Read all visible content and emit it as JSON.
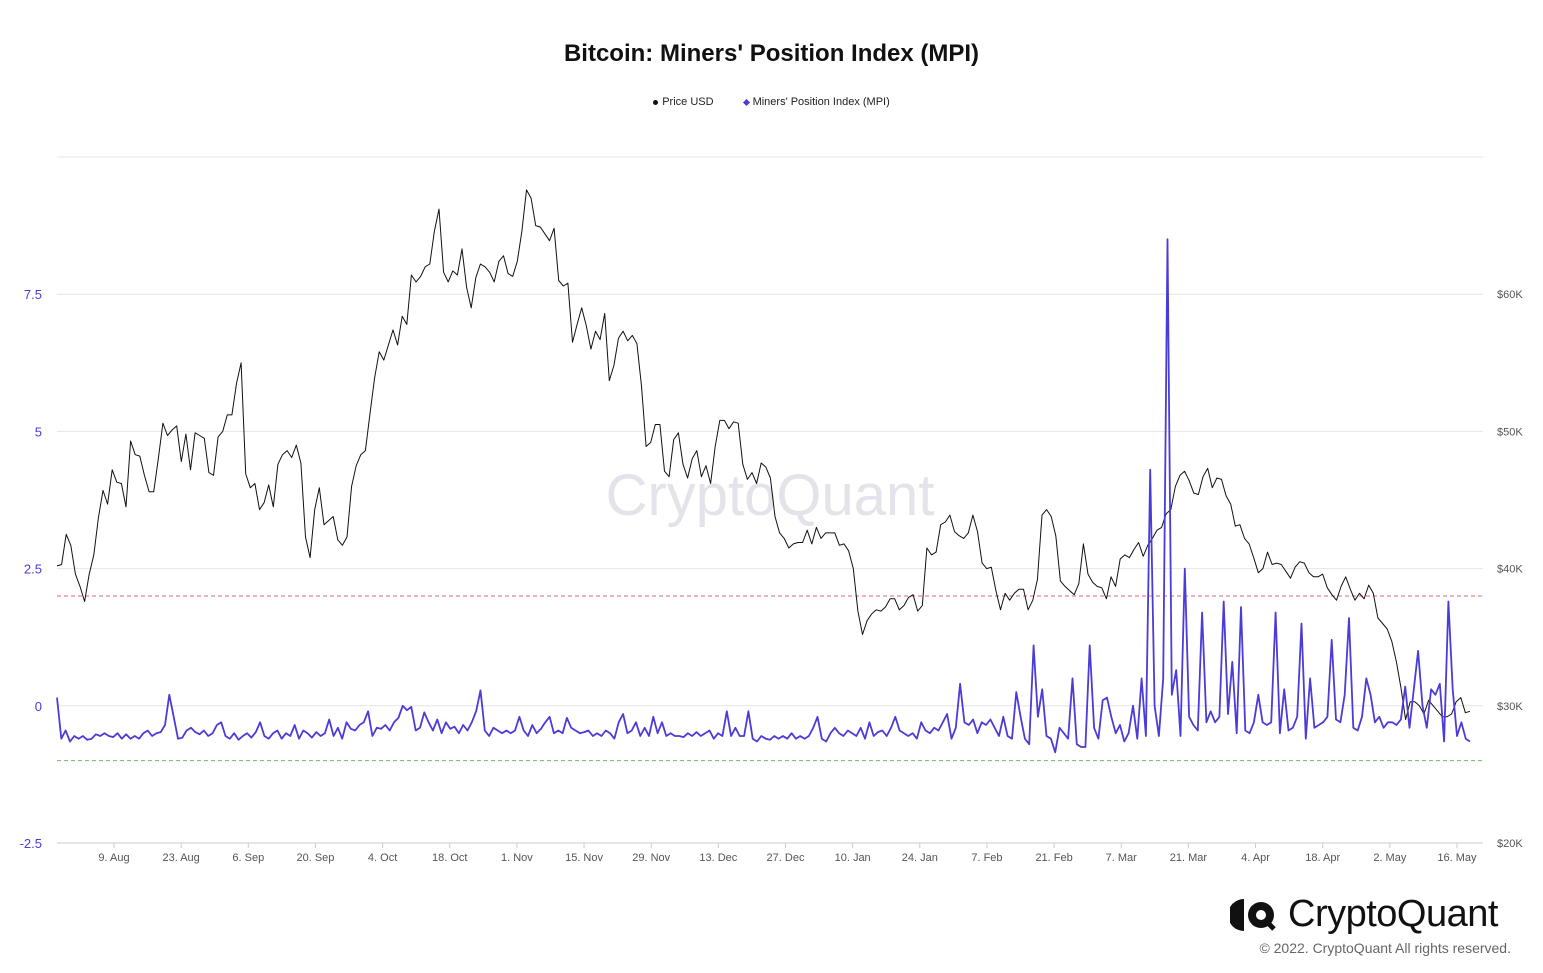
{
  "chart_data": {
    "type": "line",
    "title": "Bitcoin: Miners' Position Index (MPI)",
    "watermark": "CryptoQuant",
    "legend_placement": "top-center",
    "grid": true,
    "x_tick_labels": [
      "9. Aug",
      "23. Aug",
      "6. Sep",
      "20. Sep",
      "4. Oct",
      "18. Oct",
      "1. Nov",
      "15. Nov",
      "29. Nov",
      "13. Dec",
      "27. Dec",
      "10. Jan",
      "24. Jan",
      "7. Feb",
      "21. Feb",
      "7. Mar",
      "21. Mar",
      "4. Apr",
      "18. Apr",
      "2. May",
      "16. May"
    ],
    "y_left": {
      "ticks": [
        "7.5",
        "5",
        "2.5",
        "0",
        "-2.5"
      ],
      "range": [
        -2.5,
        10
      ],
      "color": "#4b3bd9"
    },
    "y_right": {
      "ticks": [
        "$60K",
        "$50K",
        "$40K",
        "$30K",
        "$20K"
      ],
      "range": [
        20000,
        70000
      ]
    },
    "thresholds": [
      {
        "value": 2,
        "color": "#e06666"
      },
      {
        "value": -1,
        "color": "#6abf69"
      }
    ],
    "series": [
      {
        "name": "Price USD",
        "color": "#111111",
        "axis": "right",
        "values": [
          40200,
          40300,
          42500,
          41700,
          39600,
          38700,
          37600,
          39600,
          41000,
          43700,
          45700,
          44700,
          47200,
          46300,
          46200,
          44500,
          49300,
          48300,
          48200,
          46800,
          45600,
          45600,
          48000,
          50600,
          49700,
          50100,
          50400,
          47800,
          49800,
          47200,
          49900,
          49700,
          49500,
          47000,
          46800,
          49600,
          50000,
          51200,
          51200,
          53500,
          55000,
          46900,
          45900,
          46200,
          44300,
          44800,
          46100,
          44500,
          47600,
          48300,
          48600,
          48100,
          49000,
          47700,
          42300,
          40800,
          44300,
          45900,
          43200,
          43500,
          43800,
          42100,
          41700,
          42300,
          46000,
          47500,
          48300,
          48600,
          51300,
          53900,
          55800,
          55200,
          56300,
          57400,
          56300,
          58400,
          57800,
          61400,
          60900,
          61300,
          62000,
          62200,
          64600,
          66200,
          61600,
          60900,
          61700,
          61400,
          63300,
          60500,
          59000,
          61200,
          62200,
          62000,
          61600,
          60900,
          62400,
          62800,
          61500,
          61300,
          62400,
          64600,
          67600,
          67000,
          65000,
          64900,
          64400,
          63900,
          64800,
          61000,
          60600,
          60800,
          56500,
          57800,
          59000,
          57700,
          56000,
          57300,
          56700,
          58600,
          53700,
          54800,
          56800,
          57300,
          56600,
          57000,
          56400,
          53300,
          48900,
          49200,
          50500,
          50500,
          47100,
          46700,
          49400,
          49900,
          47600,
          46600,
          48000,
          48600,
          46700,
          47500,
          46200,
          48900,
          50800,
          50800,
          50200,
          50700,
          50600,
          47600,
          46500,
          47000,
          46200,
          47700,
          47400,
          46600,
          43800,
          42600,
          42200,
          41500,
          41800,
          41900,
          41900,
          42800,
          41800,
          43000,
          42200,
          42600,
          42600,
          42600,
          41700,
          41800,
          41300,
          40000,
          36900,
          35200,
          36200,
          36700,
          37000,
          36900,
          37200,
          37800,
          37800,
          37000,
          37300,
          37900,
          38100,
          36900,
          37300,
          41500,
          41000,
          41200,
          43200,
          43400,
          43900,
          42700,
          42400,
          42200,
          42600,
          43900,
          42700,
          40400,
          40000,
          40100,
          38400,
          37000,
          38200,
          37700,
          38200,
          38500,
          38500,
          37000,
          37700,
          39200,
          43900,
          44300,
          43800,
          42400,
          39100,
          38700,
          38400,
          38100,
          38900,
          41800,
          39600,
          39000,
          38700,
          38600,
          37800,
          39400,
          38700,
          40700,
          41000,
          40800,
          41400,
          41900,
          40900,
          41700,
          42200,
          42800,
          43000,
          44000,
          44300,
          46000,
          46800,
          47100,
          46400,
          45500,
          45400,
          46700,
          47300,
          45900,
          46600,
          46500,
          45300,
          44700,
          43100,
          43200,
          42200,
          41800,
          40800,
          39700,
          40000,
          41200,
          40300,
          40400,
          40300,
          39800,
          39300,
          40100,
          40500,
          40400,
          39700,
          39400,
          39400,
          39600,
          38600,
          38100,
          37700,
          38700,
          39400,
          38500,
          37700,
          38200,
          37800,
          38800,
          38200,
          36400,
          36000,
          35600,
          34700,
          33200,
          31300,
          29000,
          30300,
          30300,
          30000,
          29400,
          30400,
          30000,
          29600,
          29200,
          29200,
          29400,
          30300,
          30600,
          29500,
          29600
        ]
      },
      {
        "name": "Miners' Position Index (MPI)",
        "color": "#4b3bd9",
        "axis": "left",
        "values": [
          0.15,
          -0.6,
          -0.45,
          -0.65,
          -0.55,
          -0.6,
          -0.55,
          -0.62,
          -0.6,
          -0.52,
          -0.55,
          -0.5,
          -0.55,
          -0.57,
          -0.5,
          -0.6,
          -0.52,
          -0.6,
          -0.55,
          -0.6,
          -0.5,
          -0.45,
          -0.55,
          -0.5,
          -0.48,
          -0.35,
          0.2,
          -0.2,
          -0.6,
          -0.58,
          -0.45,
          -0.4,
          -0.48,
          -0.52,
          -0.45,
          -0.55,
          -0.5,
          -0.35,
          -0.3,
          -0.55,
          -0.6,
          -0.5,
          -0.62,
          -0.55,
          -0.5,
          -0.58,
          -0.48,
          -0.3,
          -0.55,
          -0.6,
          -0.5,
          -0.45,
          -0.6,
          -0.5,
          -0.55,
          -0.35,
          -0.6,
          -0.45,
          -0.5,
          -0.58,
          -0.48,
          -0.55,
          -0.5,
          -0.25,
          -0.55,
          -0.4,
          -0.6,
          -0.3,
          -0.42,
          -0.45,
          -0.35,
          -0.3,
          -0.1,
          -0.55,
          -0.4,
          -0.42,
          -0.35,
          -0.45,
          -0.3,
          -0.22,
          0.0,
          -0.08,
          -0.02,
          -0.45,
          -0.4,
          -0.12,
          -0.3,
          -0.45,
          -0.25,
          -0.5,
          -0.3,
          -0.42,
          -0.38,
          -0.5,
          -0.35,
          -0.45,
          -0.3,
          -0.1,
          0.28,
          -0.45,
          -0.55,
          -0.4,
          -0.45,
          -0.5,
          -0.45,
          -0.5,
          -0.45,
          -0.2,
          -0.45,
          -0.55,
          -0.35,
          -0.5,
          -0.42,
          -0.3,
          -0.2,
          -0.5,
          -0.45,
          -0.5,
          -0.22,
          -0.4,
          -0.45,
          -0.5,
          -0.48,
          -0.45,
          -0.55,
          -0.5,
          -0.55,
          -0.45,
          -0.5,
          -0.6,
          -0.3,
          -0.15,
          -0.5,
          -0.45,
          -0.3,
          -0.55,
          -0.4,
          -0.55,
          -0.2,
          -0.5,
          -0.3,
          -0.55,
          -0.5,
          -0.55,
          -0.55,
          -0.57,
          -0.5,
          -0.55,
          -0.48,
          -0.55,
          -0.5,
          -0.45,
          -0.6,
          -0.5,
          -0.55,
          -0.1,
          -0.55,
          -0.4,
          -0.55,
          -0.55,
          -0.1,
          -0.6,
          -0.65,
          -0.55,
          -0.6,
          -0.62,
          -0.55,
          -0.6,
          -0.55,
          -0.6,
          -0.5,
          -0.6,
          -0.55,
          -0.6,
          -0.55,
          -0.4,
          -0.2,
          -0.6,
          -0.65,
          -0.5,
          -0.4,
          -0.5,
          -0.55,
          -0.45,
          -0.5,
          -0.55,
          -0.4,
          -0.6,
          -0.3,
          -0.55,
          -0.48,
          -0.45,
          -0.55,
          -0.4,
          -0.2,
          -0.45,
          -0.5,
          -0.55,
          -0.5,
          -0.6,
          -0.3,
          -0.45,
          -0.5,
          -0.4,
          -0.45,
          -0.3,
          -0.15,
          -0.6,
          -0.4,
          0.4,
          -0.3,
          -0.35,
          -0.25,
          -0.5,
          -0.3,
          -0.35,
          -0.25,
          -0.4,
          -0.55,
          -0.2,
          -0.55,
          -0.6,
          0.25,
          -0.2,
          -0.6,
          -0.7,
          1.1,
          -0.2,
          0.3,
          -0.55,
          -0.6,
          -0.85,
          -0.4,
          -0.5,
          -0.6,
          0.5,
          -0.7,
          -0.75,
          -0.75,
          1.1,
          -0.4,
          -0.6,
          0.1,
          0.15,
          -0.2,
          -0.5,
          -0.35,
          -0.65,
          -0.5,
          0.0,
          -0.6,
          0.5,
          -0.55,
          4.3,
          0.0,
          -0.55,
          0.5,
          8.5,
          0.2,
          0.65,
          -0.55,
          2.5,
          -0.2,
          -0.35,
          -0.45,
          1.7,
          -0.3,
          -0.1,
          -0.3,
          -0.2,
          1.9,
          -0.15,
          0.8,
          -0.5,
          1.8,
          -0.45,
          -0.5,
          -0.3,
          0.2,
          -0.3,
          -0.35,
          -0.3,
          1.7,
          -0.5,
          0.3,
          -0.45,
          -0.4,
          -0.2,
          1.5,
          -0.6,
          0.5,
          -0.4,
          -0.35,
          -0.3,
          -0.2,
          1.2,
          -0.25,
          -0.3,
          0.2,
          1.6,
          -0.4,
          -0.45,
          -0.2,
          0.5,
          0.2,
          -0.3,
          -0.2,
          -0.4,
          -0.3,
          -0.3,
          -0.35,
          -0.25,
          0.35,
          -0.4,
          0.3,
          1.0,
          0.0,
          -0.4,
          0.3,
          0.2,
          0.4,
          -0.65,
          1.9,
          0.3,
          -0.55,
          -0.3,
          -0.6,
          -0.65
        ]
      }
    ]
  },
  "footer": {
    "brand": "CryptoQuant",
    "copyright": "© 2022. CryptoQuant All rights reserved."
  }
}
